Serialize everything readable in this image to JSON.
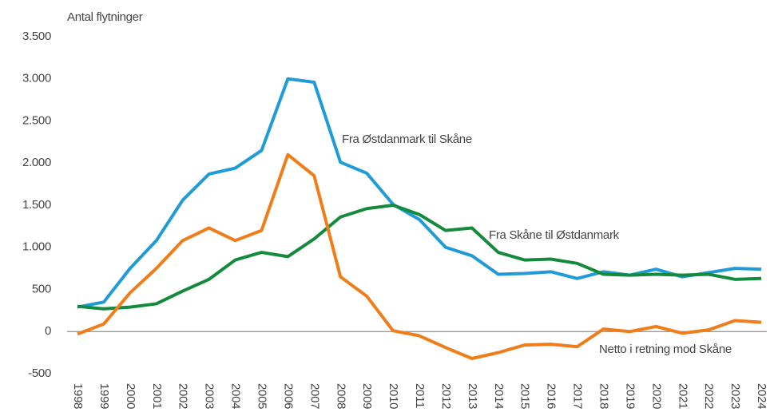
{
  "chart_data": {
    "type": "line",
    "y_label": "Antal flytninger",
    "x": [
      "1998",
      "1999",
      "2000",
      "2001",
      "2002",
      "2003",
      "2004",
      "2005",
      "2006",
      "2007",
      "2008",
      "2009",
      "2010",
      "2011",
      "2012",
      "2013",
      "2014",
      "2015",
      "2016",
      "2017",
      "2018",
      "2019",
      "2020",
      "2021",
      "2022",
      "2023",
      "2024"
    ],
    "series": [
      {
        "name": "Fra Østdanmark til Skåne",
        "color": "#1f9bd7",
        "values": [
          290,
          350,
          750,
          1080,
          1560,
          1870,
          1940,
          2150,
          3000,
          2960,
          2010,
          1880,
          1510,
          1330,
          1000,
          900,
          680,
          690,
          710,
          630,
          710,
          670,
          740,
          650,
          700,
          750,
          740
        ]
      },
      {
        "name": "Fra Skåne til Østdanmark",
        "color": "#138a3c",
        "values": [
          300,
          270,
          290,
          330,
          480,
          620,
          850,
          940,
          890,
          1100,
          1360,
          1460,
          1500,
          1390,
          1200,
          1230,
          940,
          850,
          860,
          810,
          680,
          670,
          680,
          670,
          680,
          620,
          630
        ]
      },
      {
        "name": "Netto i retning mod Skåne",
        "color": "#ef7d1a",
        "values": [
          -30,
          90,
          460,
          750,
          1080,
          1230,
          1080,
          1200,
          2100,
          1850,
          650,
          420,
          10,
          -50,
          -190,
          -320,
          -250,
          -160,
          -150,
          -180,
          30,
          0,
          60,
          -20,
          20,
          130,
          110
        ]
      }
    ],
    "ylim": [
      -500,
      3500
    ],
    "yticks": [
      -500,
      0,
      500,
      {
        "value": 1000,
        "label": "1.000"
      },
      {
        "value": 1500,
        "label": "1.500"
      },
      {
        "value": 2000,
        "label": "2.000"
      },
      {
        "value": 2500,
        "label": "2.500"
      },
      {
        "value": 3000,
        "label": "3.000"
      },
      {
        "value": 3500,
        "label": "3.500"
      }
    ]
  }
}
